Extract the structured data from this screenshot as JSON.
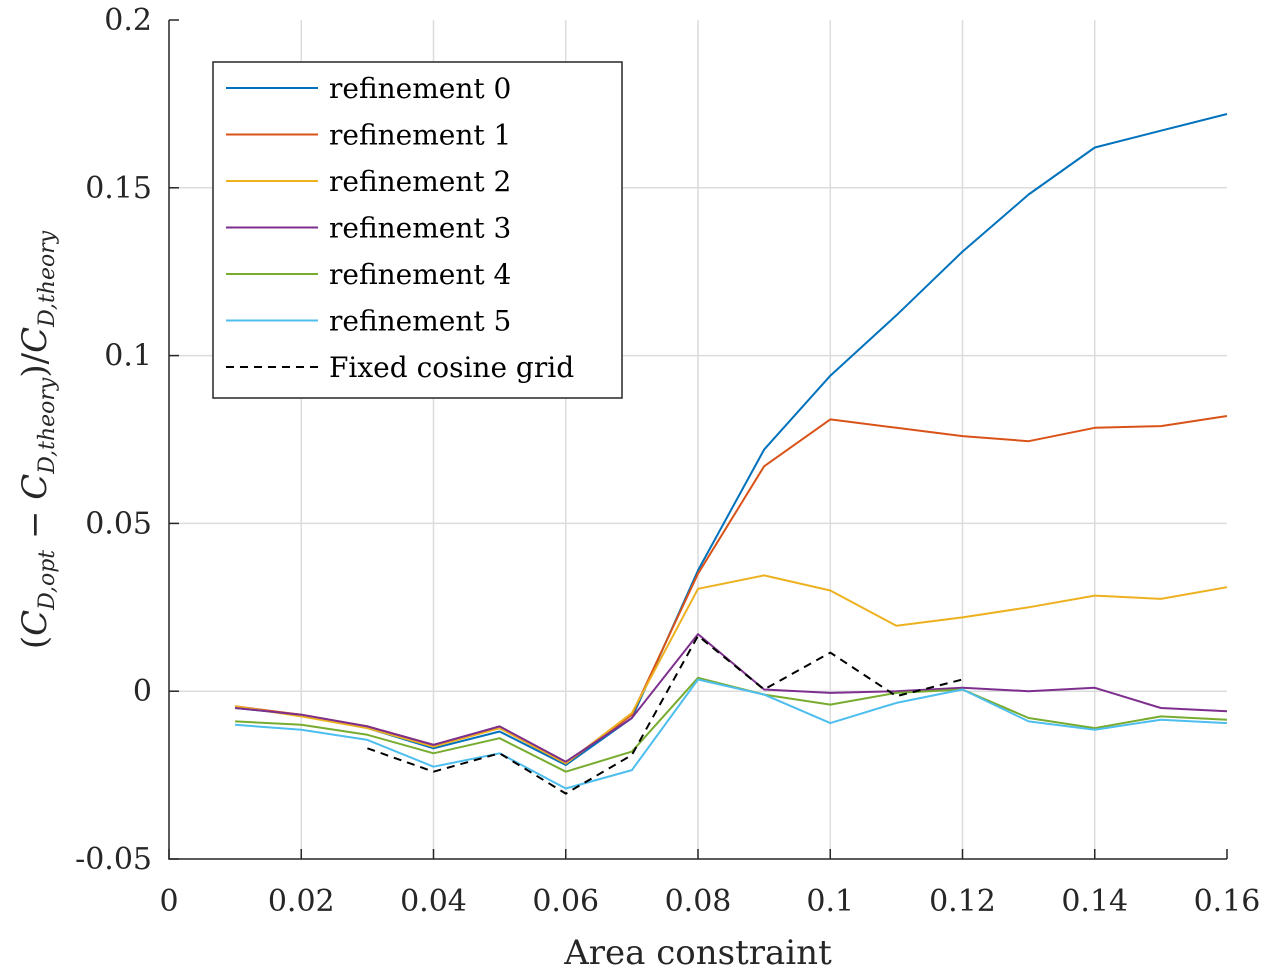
{
  "chart_data": {
    "type": "line",
    "xlabel": "Area constraint",
    "ylabel": "(C_{D,opt} − C_{D,theory})/C_{D,theory}",
    "ylabel_parts": {
      "open": "(",
      "c1": "C",
      "sub1": "D,opt",
      "minus": " − ",
      "c2": "C",
      "sub2": "D,theory",
      "close": ")/",
      "c3": "C",
      "sub3": "D,theory"
    },
    "xlim": [
      0,
      0.16
    ],
    "ylim": [
      -0.05,
      0.2
    ],
    "xticks": [
      0,
      0.02,
      0.04,
      0.06,
      0.08,
      0.1,
      0.12,
      0.14,
      0.16
    ],
    "xtick_labels": [
      "0",
      "0.02",
      "0.04",
      "0.06",
      "0.08",
      "0.1",
      "0.12",
      "0.14",
      "0.16"
    ],
    "yticks": [
      -0.05,
      0,
      0.05,
      0.1,
      0.15,
      0.2
    ],
    "ytick_labels": [
      "-0.05",
      "0",
      "0.05",
      "0.1",
      "0.15",
      "0.2"
    ],
    "grid": true,
    "legend_position": "top-left",
    "x": [
      0.01,
      0.02,
      0.03,
      0.04,
      0.05,
      0.06,
      0.07,
      0.08,
      0.09,
      0.1,
      0.11,
      0.12,
      0.13,
      0.14,
      0.15,
      0.16
    ],
    "series": [
      {
        "name": "refinement 0",
        "color": "#0072bd",
        "dash": "solid",
        "values": [
          -0.005,
          -0.007,
          -0.011,
          -0.017,
          -0.012,
          -0.022,
          -0.008,
          0.036,
          0.072,
          0.094,
          0.112,
          0.131,
          0.148,
          0.162,
          0.167,
          0.172
        ]
      },
      {
        "name": "refinement 1",
        "color": "#d95319",
        "dash": "solid",
        "values": [
          -0.0045,
          -0.007,
          -0.0105,
          -0.016,
          -0.011,
          -0.0215,
          -0.007,
          0.035,
          0.067,
          0.081,
          0.0785,
          0.076,
          0.0745,
          0.0785,
          0.079,
          0.082
        ]
      },
      {
        "name": "refinement 2",
        "color": "#edb120",
        "dash": "solid",
        "values": [
          -0.0045,
          -0.0075,
          -0.011,
          -0.0165,
          -0.011,
          -0.0215,
          -0.0065,
          0.0305,
          0.0345,
          0.03,
          0.0195,
          0.022,
          0.025,
          0.0285,
          0.0275,
          0.031
        ]
      },
      {
        "name": "refinement 3",
        "color": "#7e2f8e",
        "dash": "solid",
        "values": [
          -0.005,
          -0.007,
          -0.0105,
          -0.016,
          -0.0105,
          -0.021,
          -0.008,
          0.017,
          0.0005,
          -0.0005,
          0.0,
          0.001,
          0.0,
          0.001,
          -0.005,
          -0.006
        ]
      },
      {
        "name": "refinement 4",
        "color": "#77ac30",
        "dash": "solid",
        "values": [
          -0.009,
          -0.01,
          -0.013,
          -0.0185,
          -0.014,
          -0.024,
          -0.018,
          0.004,
          -0.001,
          -0.004,
          -0.0005,
          0.0005,
          -0.008,
          -0.011,
          -0.0075,
          -0.0085
        ]
      },
      {
        "name": "refinement 5",
        "color": "#4dbeee",
        "dash": "solid",
        "values": [
          -0.01,
          -0.0115,
          -0.0145,
          -0.0225,
          -0.0185,
          -0.029,
          -0.0235,
          0.0035,
          -0.001,
          -0.0095,
          -0.0035,
          0.0005,
          -0.009,
          -0.0115,
          -0.0085,
          -0.0095
        ]
      },
      {
        "name": "Fixed cosine grid",
        "color": "#000000",
        "dash": "dashed",
        "values": [
          null,
          null,
          -0.017,
          -0.024,
          -0.0185,
          -0.0305,
          -0.019,
          0.0165,
          0.0005,
          0.0115,
          -0.0015,
          0.0035,
          null,
          null,
          null,
          null
        ]
      }
    ]
  }
}
